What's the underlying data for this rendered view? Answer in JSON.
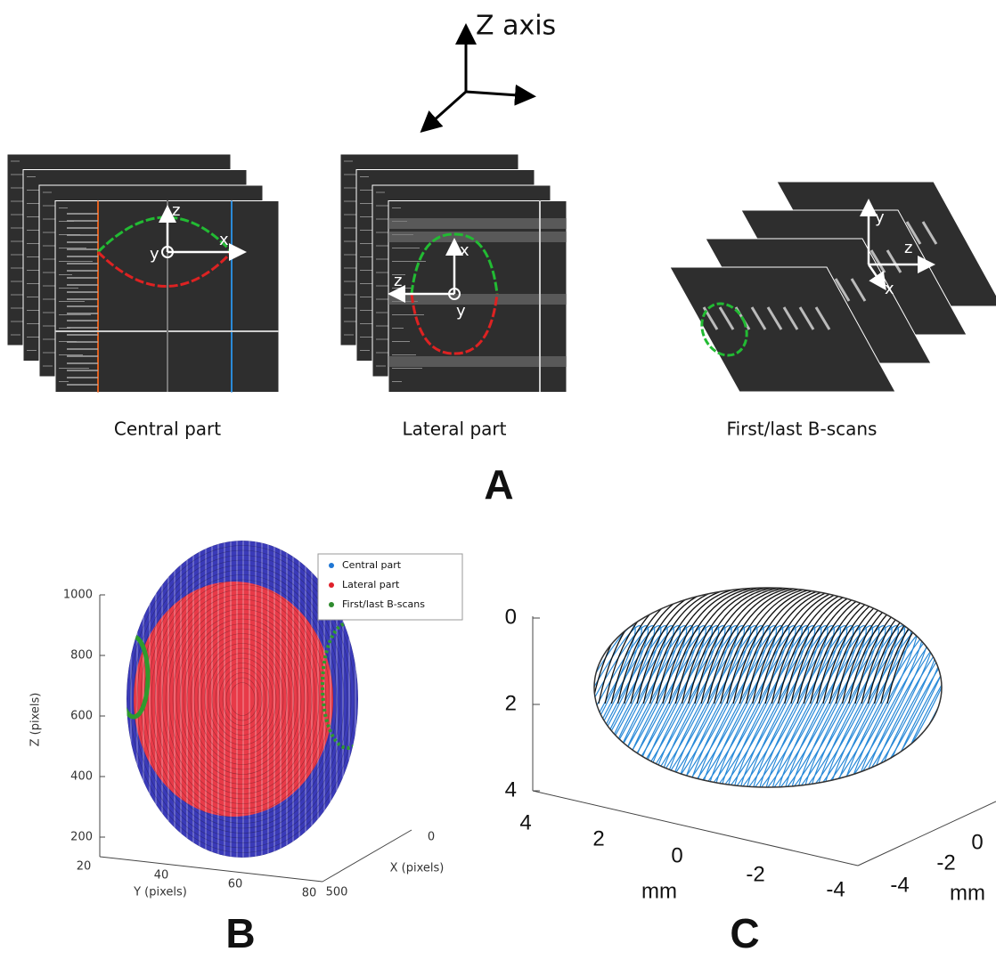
{
  "panel_a": {
    "axis_title": "Z axis",
    "letter": "A",
    "central": {
      "caption": "Central part",
      "axes": [
        "z",
        "x",
        "y"
      ]
    },
    "lateral": {
      "caption": "Lateral part",
      "axes": [
        "x",
        "z",
        "y"
      ]
    },
    "first_last": {
      "caption": "First/last B-scans",
      "axes": [
        "y",
        "z",
        "x"
      ]
    }
  },
  "panel_b": {
    "letter": "B",
    "z_label": "Z (pixels)",
    "y_label": "Y (pixels)",
    "x_label": "X (pixels)",
    "z_ticks": [
      1000,
      800,
      600,
      400,
      200
    ],
    "y_ticks": [
      20,
      40,
      60,
      80
    ],
    "x_ticks": [
      0,
      500
    ],
    "legend": [
      "Central part",
      "Lateral part",
      "First/last B-scans"
    ]
  },
  "panel_c": {
    "letter": "C",
    "v_ticks": [
      0,
      2,
      4
    ],
    "front_ticks": [
      4,
      2,
      0,
      -2,
      -4
    ],
    "front_label": "mm",
    "side_ticks": [
      0,
      -2,
      -4
    ],
    "side_label": "mm"
  }
}
